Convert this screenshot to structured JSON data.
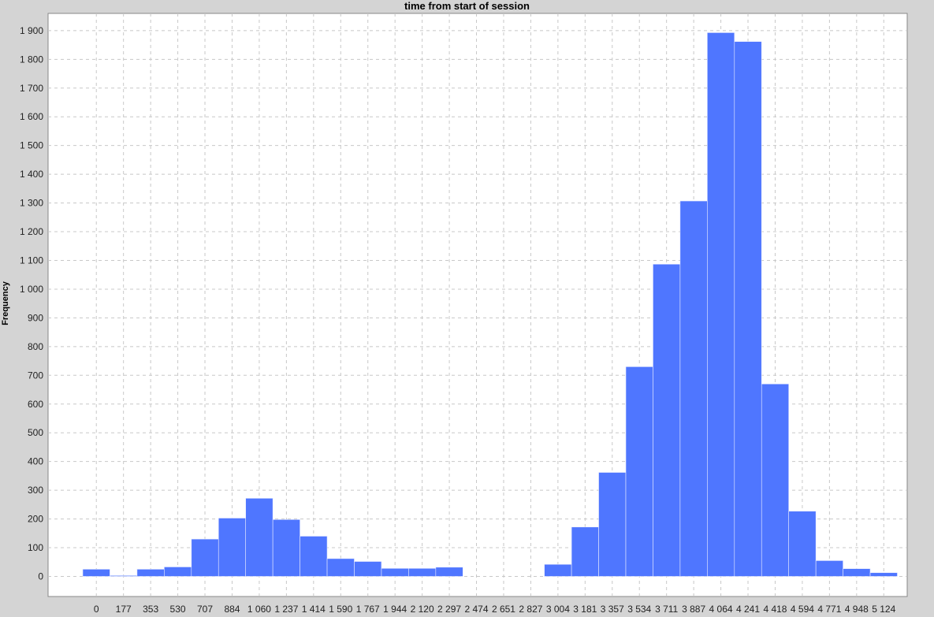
{
  "chart_data": {
    "type": "bar",
    "title": "time from start of session",
    "xlabel": "",
    "ylabel": "Frequency",
    "grid": true,
    "bar_color": "#4f76ff",
    "bar_edge_color": "#e8ecff",
    "x_tick_labels": [
      "0",
      "177",
      "353",
      "530",
      "707",
      "884",
      "1 060",
      "1 237",
      "1 414",
      "1 590",
      "1 767",
      "1 944",
      "2 120",
      "2 297",
      "2 474",
      "2 651",
      "2 827",
      "3 004",
      "3 181",
      "3 357",
      "3 534",
      "3 711",
      "3 887",
      "4 064",
      "4 241",
      "4 418",
      "4 594",
      "4 771",
      "4 948",
      "5 124"
    ],
    "y_tick_labels": [
      "0",
      "100",
      "200",
      "300",
      "400",
      "500",
      "600",
      "700",
      "800",
      "900",
      "1 000",
      "1 100",
      "1 200",
      "1 300",
      "1 400",
      "1 500",
      "1 600",
      "1 700",
      "1 800",
      "1 900"
    ],
    "y_ticks": [
      0,
      100,
      200,
      300,
      400,
      500,
      600,
      700,
      800,
      900,
      1000,
      1100,
      1200,
      1300,
      1400,
      1500,
      1600,
      1700,
      1800,
      1900
    ],
    "ylim": [
      -70,
      1960
    ],
    "bins": [
      {
        "start": 0,
        "value": 25
      },
      {
        "start": 177,
        "value": 3
      },
      {
        "start": 353,
        "value": 25
      },
      {
        "start": 530,
        "value": 33
      },
      {
        "start": 707,
        "value": 130
      },
      {
        "start": 884,
        "value": 203
      },
      {
        "start": 1060,
        "value": 272
      },
      {
        "start": 1237,
        "value": 198
      },
      {
        "start": 1414,
        "value": 140
      },
      {
        "start": 1590,
        "value": 62
      },
      {
        "start": 1767,
        "value": 52
      },
      {
        "start": 1944,
        "value": 28
      },
      {
        "start": 2120,
        "value": 28
      },
      {
        "start": 2297,
        "value": 32
      },
      {
        "start": 2474,
        "value": 0
      },
      {
        "start": 2651,
        "value": 0
      },
      {
        "start": 2827,
        "value": 0
      },
      {
        "start": 3004,
        "value": 42
      },
      {
        "start": 3181,
        "value": 172
      },
      {
        "start": 3357,
        "value": 362
      },
      {
        "start": 3534,
        "value": 730
      },
      {
        "start": 3711,
        "value": 1087
      },
      {
        "start": 3887,
        "value": 1307
      },
      {
        "start": 4064,
        "value": 1893
      },
      {
        "start": 4241,
        "value": 1862
      },
      {
        "start": 4418,
        "value": 670
      },
      {
        "start": 4594,
        "value": 227
      },
      {
        "start": 4771,
        "value": 55
      },
      {
        "start": 4948,
        "value": 27
      },
      {
        "start": 5124,
        "value": 13
      }
    ]
  }
}
